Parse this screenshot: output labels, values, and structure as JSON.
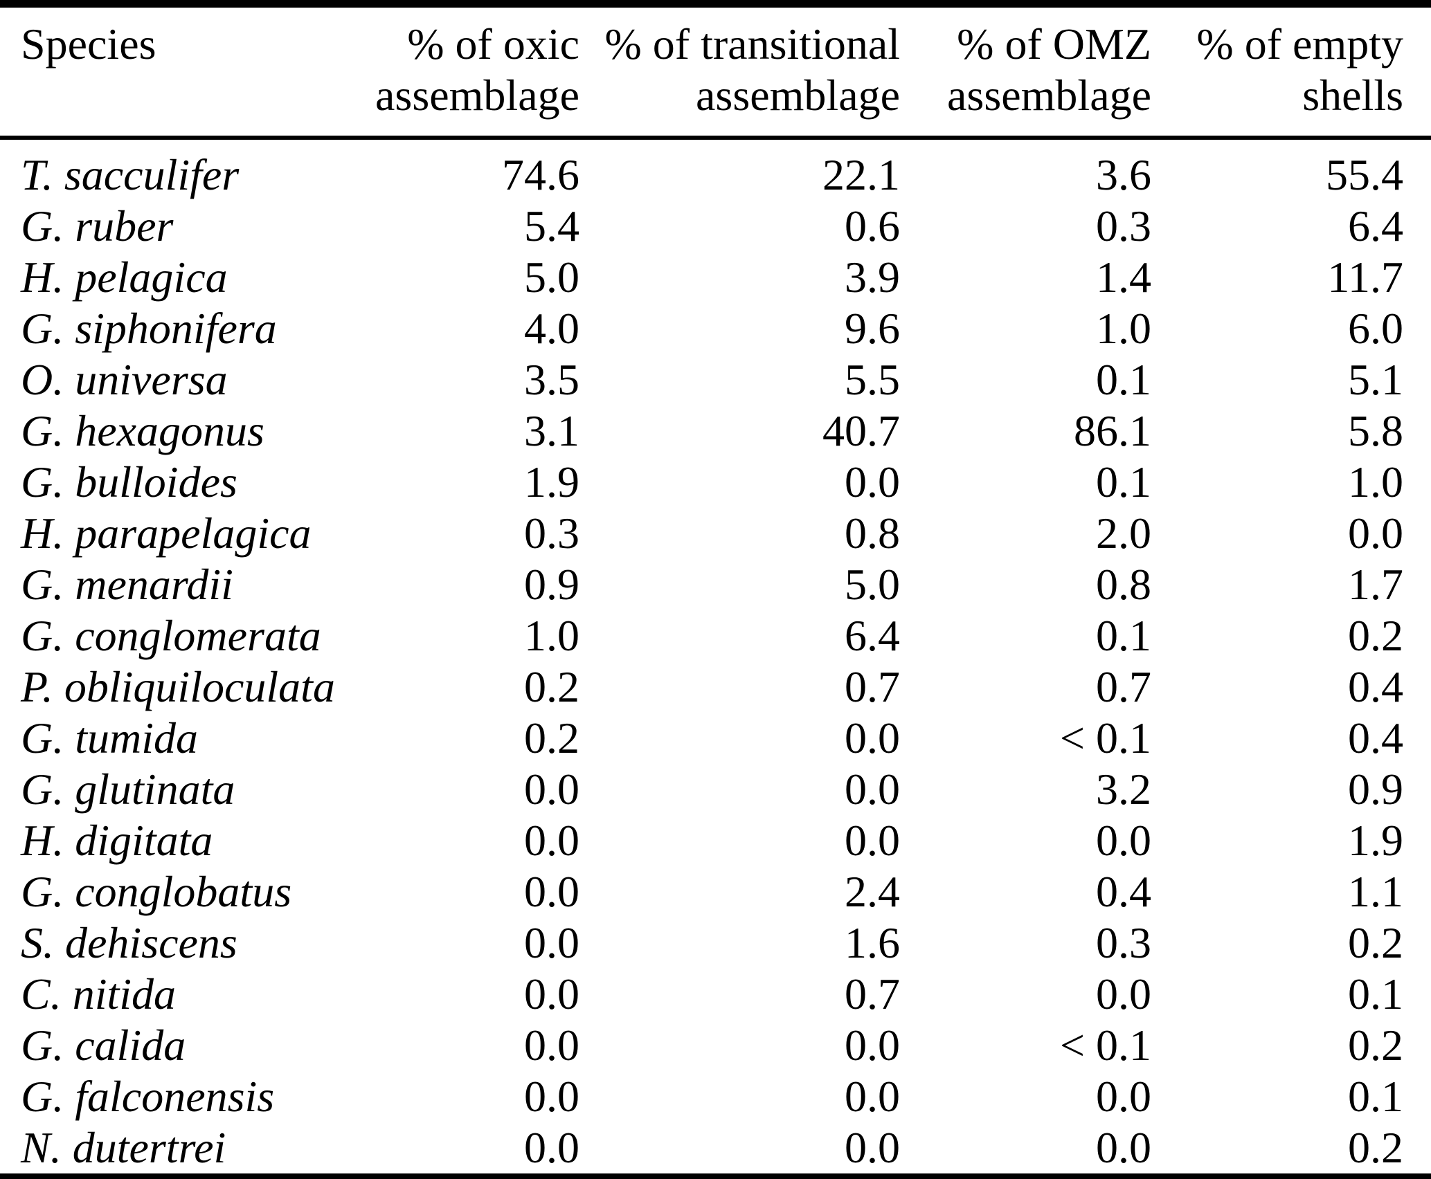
{
  "table": {
    "columns": [
      {
        "line1": "Species",
        "line2": ""
      },
      {
        "line1": "% of oxic",
        "line2": "assemblage"
      },
      {
        "line1": "% of transitional",
        "line2": "assemblage"
      },
      {
        "line1": "% of OMZ",
        "line2": "assemblage"
      },
      {
        "line1": "% of empty",
        "line2": "shells"
      }
    ],
    "rows": [
      {
        "species": "T. sacculifer",
        "oxic": "74.6",
        "transitional": "22.1",
        "omz": "3.6",
        "empty": "55.4"
      },
      {
        "species": "G. ruber",
        "oxic": "5.4",
        "transitional": "0.6",
        "omz": "0.3",
        "empty": "6.4"
      },
      {
        "species": "H. pelagica",
        "oxic": "5.0",
        "transitional": "3.9",
        "omz": "1.4",
        "empty": "11.7"
      },
      {
        "species": "G. siphonifera",
        "oxic": "4.0",
        "transitional": "9.6",
        "omz": "1.0",
        "empty": "6.0"
      },
      {
        "species": "O. universa",
        "oxic": "3.5",
        "transitional": "5.5",
        "omz": "0.1",
        "empty": "5.1"
      },
      {
        "species": "G. hexagonus",
        "oxic": "3.1",
        "transitional": "40.7",
        "omz": "86.1",
        "empty": "5.8"
      },
      {
        "species": "G. bulloides",
        "oxic": "1.9",
        "transitional": "0.0",
        "omz": "0.1",
        "empty": "1.0"
      },
      {
        "species": "H. parapelagica",
        "oxic": "0.3",
        "transitional": "0.8",
        "omz": "2.0",
        "empty": "0.0"
      },
      {
        "species": "G. menardii",
        "oxic": "0.9",
        "transitional": "5.0",
        "omz": "0.8",
        "empty": "1.7"
      },
      {
        "species": "G. conglomerata",
        "oxic": "1.0",
        "transitional": "6.4",
        "omz": "0.1",
        "empty": "0.2"
      },
      {
        "species": "P. obliquiloculata",
        "oxic": "0.2",
        "transitional": "0.7",
        "omz": "0.7",
        "empty": "0.4"
      },
      {
        "species": "G. tumida",
        "oxic": "0.2",
        "transitional": "0.0",
        "omz": "< 0.1",
        "empty": "0.4"
      },
      {
        "species": "G. glutinata",
        "oxic": "0.0",
        "transitional": "0.0",
        "omz": "3.2",
        "empty": "0.9"
      },
      {
        "species": "H. digitata",
        "oxic": "0.0",
        "transitional": "0.0",
        "omz": "0.0",
        "empty": "1.9"
      },
      {
        "species": "G. conglobatus",
        "oxic": "0.0",
        "transitional": "2.4",
        "omz": "0.4",
        "empty": "1.1"
      },
      {
        "species": "S. dehiscens",
        "oxic": "0.0",
        "transitional": "1.6",
        "omz": "0.3",
        "empty": "0.2"
      },
      {
        "species": "C. nitida",
        "oxic": "0.0",
        "transitional": "0.7",
        "omz": "0.0",
        "empty": "0.1"
      },
      {
        "species": "G. calida",
        "oxic": "0.0",
        "transitional": "0.0",
        "omz": "< 0.1",
        "empty": "0.2"
      },
      {
        "species": "G. falconensis",
        "oxic": "0.0",
        "transitional": "0.0",
        "omz": "0.0",
        "empty": "0.1"
      },
      {
        "species": "N. dutertrei",
        "oxic": "0.0",
        "transitional": "0.0",
        "omz": "0.0",
        "empty": "0.2"
      }
    ]
  }
}
